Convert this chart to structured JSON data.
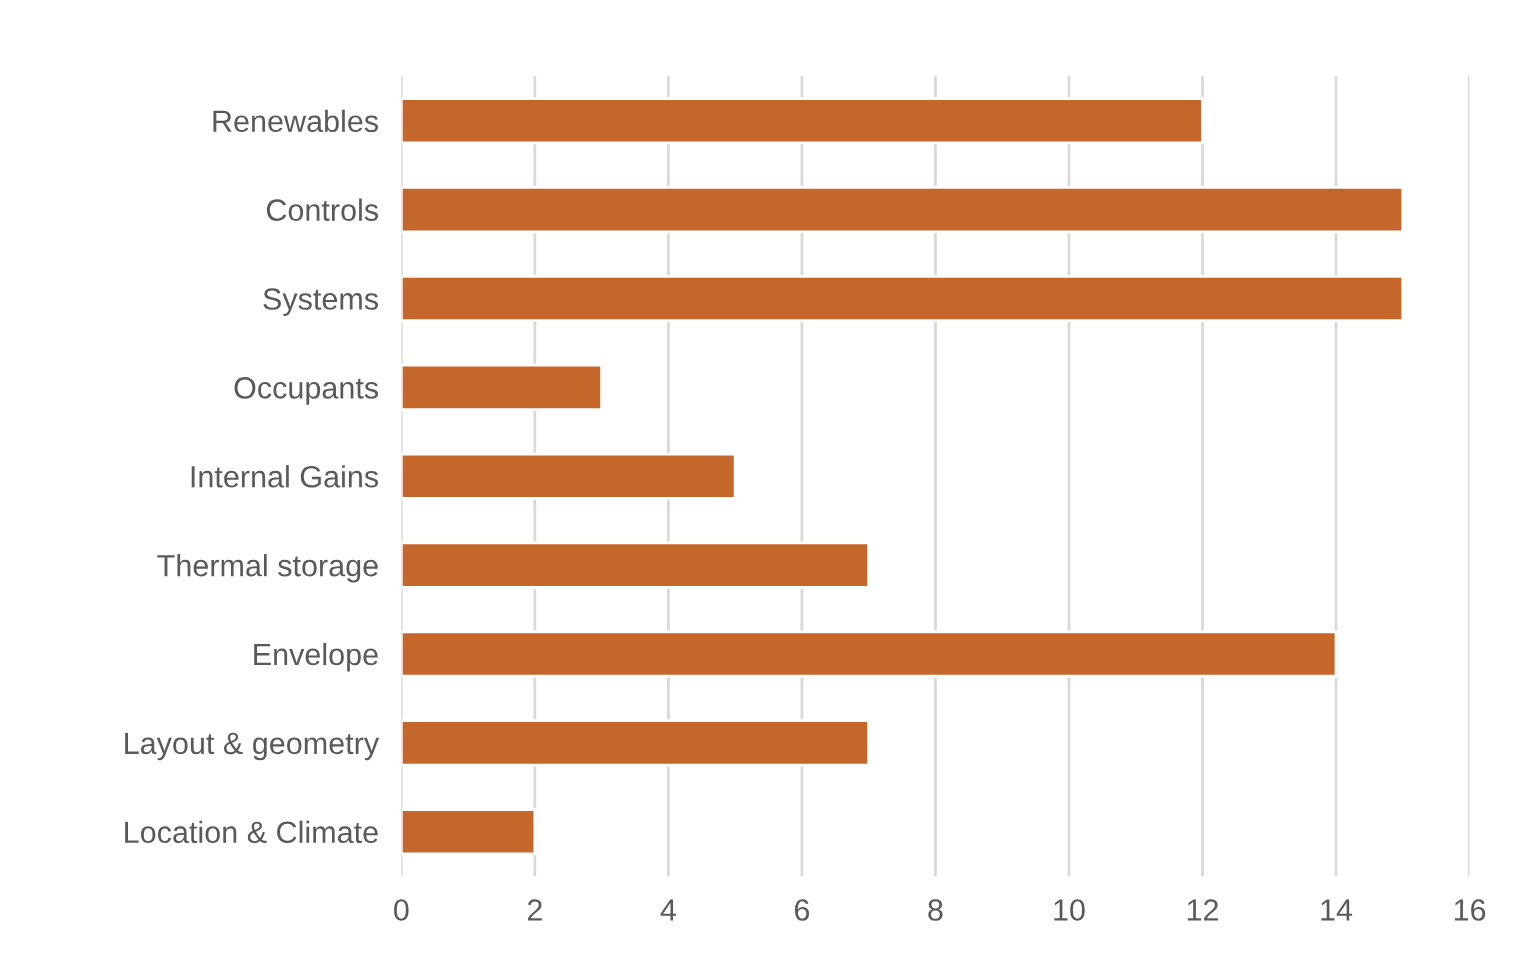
{
  "chart_data": {
    "type": "bar",
    "orientation": "horizontal",
    "categories": [
      "Renewables",
      "Controls",
      "Systems",
      "Occupants",
      "Internal Gains",
      "Thermal storage",
      "Envelope",
      "Layout & geometry",
      "Location & Climate"
    ],
    "values": [
      12,
      15,
      15,
      3,
      5,
      7,
      14,
      7,
      2
    ],
    "color": "#c5672b",
    "xlim": [
      0,
      16
    ],
    "xticks": [
      0,
      2,
      4,
      6,
      8,
      10,
      12,
      14,
      16
    ],
    "grid": "x",
    "legend": false
  }
}
